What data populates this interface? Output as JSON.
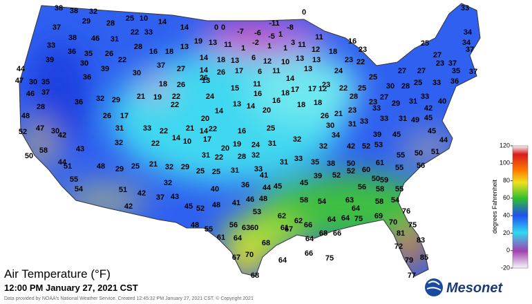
{
  "title": "Air Temperature (°F)",
  "timestamp": "12:00 PM January 27, 2021 CST",
  "credit": "Data provided by NOAA's National Weather Service. Created 12:45:32 PM January 27, 2021 CST. © Copyright 2021",
  "logo": "Mesonet",
  "colorbar": {
    "label": "degrees Fahrenheit",
    "lim": [
      -20,
      120
    ],
    "ticks": [
      120,
      100,
      80,
      60,
      40,
      20,
      0,
      -20
    ]
  },
  "stations": [
    38,
    38,
    32,
    25,
    10,
    14,
    0,
    0,
    -7,
    -6,
    -11,
    -8,
    0,
    33,
    37,
    29,
    28,
    22,
    33,
    14,
    -5,
    1,
    11,
    34,
    38,
    46,
    31,
    19,
    13,
    11,
    -2,
    1,
    3,
    11,
    12,
    18,
    16,
    25,
    34,
    37,
    33,
    36,
    35,
    26,
    28,
    13,
    1,
    1,
    39,
    30,
    22,
    16,
    18,
    14,
    18,
    13,
    6,
    12,
    10,
    13,
    13,
    22,
    23,
    27,
    24,
    23,
    25,
    27,
    27,
    23,
    37,
    35,
    37,
    36,
    44,
    39,
    30,
    37,
    27,
    14,
    13,
    26,
    17,
    6,
    11,
    13,
    14,
    25,
    33,
    47,
    30,
    35,
    36,
    18,
    26,
    26,
    15,
    11,
    17,
    17,
    12,
    22,
    25,
    30,
    28,
    46,
    37,
    36,
    32,
    29,
    21,
    19,
    22,
    24,
    16,
    16,
    18,
    23,
    28,
    23,
    27,
    33,
    31,
    29,
    40,
    42,
    48,
    28,
    22,
    13,
    14,
    20,
    18,
    18,
    21,
    23,
    33,
    26,
    47,
    26,
    17,
    14,
    20,
    33,
    31,
    45,
    49,
    45,
    52,
    30,
    31,
    33,
    22,
    14,
    21,
    14,
    22,
    16,
    25,
    30,
    31,
    33,
    39,
    45,
    34,
    50,
    58,
    42,
    32,
    22,
    10,
    17,
    20,
    19,
    24,
    31,
    32,
    32,
    42,
    52,
    53,
    44,
    50,
    51,
    55,
    43,
    44,
    51,
    48,
    29,
    25,
    21,
    31,
    22,
    28,
    32,
    33,
    35,
    38,
    50,
    61,
    55,
    56,
    55,
    32,
    29,
    25,
    25,
    31,
    33,
    31,
    41,
    44,
    45,
    45,
    39,
    52,
    52,
    60,
    50,
    59,
    54,
    51,
    32,
    40,
    36,
    56,
    58,
    55,
    42,
    37,
    43,
    48,
    41,
    46,
    48,
    58,
    54,
    63,
    58,
    54,
    42,
    45,
    52,
    53,
    64,
    76,
    62,
    64,
    64,
    75,
    69,
    70,
    75,
    48,
    55,
    56,
    63,
    60,
    62,
    61,
    67,
    66,
    68,
    66,
    81,
    83,
    61,
    64,
    68,
    64,
    72,
    79,
    85,
    77,
    67,
    70,
    66,
    64,
    75,
    68
  ]
}
